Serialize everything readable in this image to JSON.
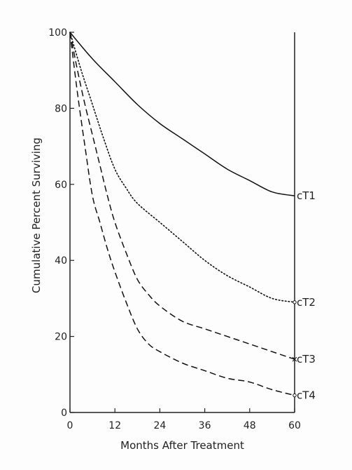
{
  "chart_data": {
    "type": "line",
    "xlabel": "Months After Treatment",
    "ylabel": "Cumulative Percent Surviving",
    "xlim": [
      0,
      60
    ],
    "ylim": [
      0,
      100
    ],
    "xticks": [
      0,
      12,
      24,
      36,
      48,
      60
    ],
    "yticks": [
      0,
      20,
      40,
      60,
      80,
      100
    ],
    "grid": false,
    "legend": "none (series labeled at line ends, right)",
    "series": [
      {
        "name": "cT1",
        "style": "solid",
        "x": [
          0,
          6,
          12,
          18,
          24,
          30,
          36,
          42,
          48,
          54,
          60
        ],
        "y": [
          100,
          93,
          87,
          81,
          76,
          72,
          68,
          64,
          61,
          58,
          57
        ]
      },
      {
        "name": "cT2",
        "style": "dotted",
        "x": [
          0,
          3,
          6,
          9,
          12,
          15,
          18,
          24,
          30,
          36,
          42,
          48,
          54,
          60
        ],
        "y": [
          100,
          90,
          81,
          72,
          64,
          59,
          55,
          50,
          45,
          40,
          36,
          33,
          30,
          29
        ],
        "end_marker": "circle"
      },
      {
        "name": "cT3",
        "style": "dashed",
        "x": [
          0,
          2,
          4,
          6,
          8,
          10,
          12,
          15,
          18,
          21,
          24,
          30,
          36,
          42,
          48,
          54,
          60
        ],
        "y": [
          100,
          90,
          81,
          73,
          65,
          57,
          50,
          42,
          35,
          31,
          28,
          24,
          22,
          20,
          18,
          16,
          14
        ],
        "end_marker": "x"
      },
      {
        "name": "cT4",
        "style": "dashed",
        "x": [
          0,
          2,
          4,
          6,
          8,
          10,
          12,
          15,
          18,
          21,
          24,
          30,
          36,
          42,
          48,
          54,
          60
        ],
        "y": [
          100,
          84,
          70,
          57,
          50,
          43,
          37,
          29,
          22,
          18,
          16,
          13,
          11,
          9,
          8,
          6,
          4.5
        ],
        "end_marker": "circle"
      }
    ]
  }
}
